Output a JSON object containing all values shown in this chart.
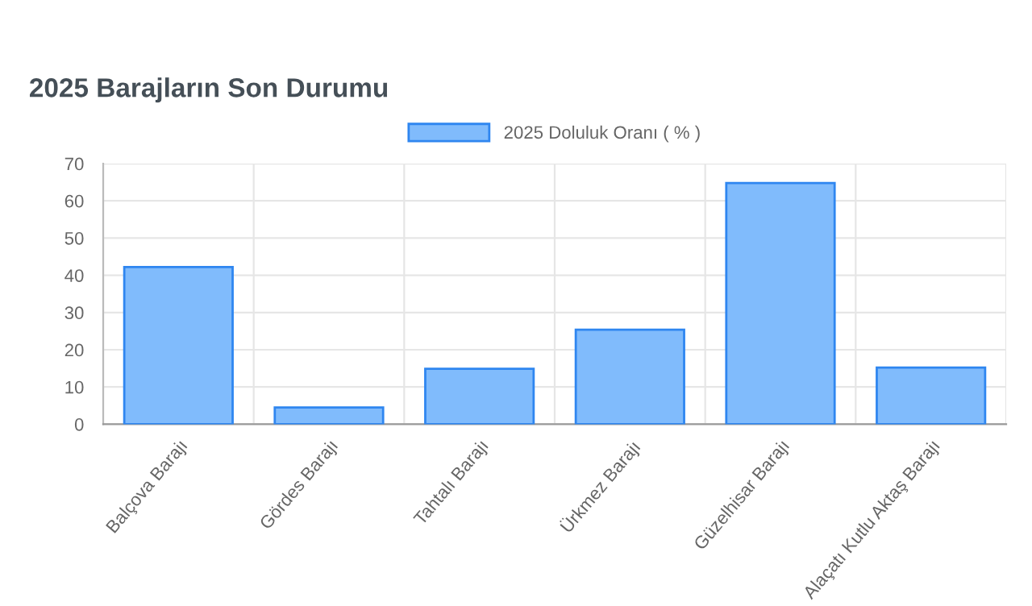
{
  "chart_data": {
    "type": "bar",
    "title": "2025 Barajların Son Durumu",
    "categories": [
      "Balçova Barajı",
      "Gördes Barajı",
      "Tahtalı Barajı",
      "Ürkmez Barajı",
      "Güzelhisar Barajı",
      "Alaçatı Kutlu Aktaş Barajı"
    ],
    "series": [
      {
        "name": "2025 Doluluk Oranı ( % )",
        "color": "#80bbfc",
        "values": [
          42.2,
          4.5,
          14.9,
          25.4,
          64.8,
          15.2
        ]
      }
    ],
    "ylim": [
      0,
      70
    ],
    "yticks": [
      0,
      10,
      20,
      30,
      40,
      50,
      60,
      70
    ],
    "grid": true,
    "legend": "top"
  }
}
